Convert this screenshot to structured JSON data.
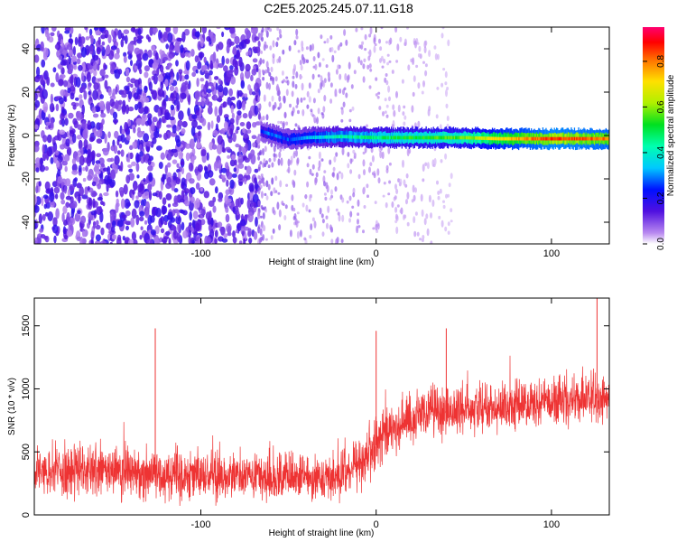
{
  "chart_data": [
    {
      "type": "heatmap",
      "title": "C2E5.2025.245.07.11.G18",
      "xlabel": "Height of straight line (km)",
      "ylabel": "Frequency (Hz)",
      "xlim": [
        -195,
        133
      ],
      "ylim": [
        -50,
        50
      ],
      "xticks": [
        -100,
        0,
        100
      ],
      "yticks": [
        -40,
        -20,
        0,
        20,
        40
      ],
      "colorbar": {
        "label": "Normalized spectral amplitude",
        "range": [
          0,
          0.95
        ],
        "ticks": [
          0.0,
          0.2,
          0.4,
          0.6,
          0.8
        ]
      },
      "ridge": {
        "description_points": [
          {
            "x": -66,
            "y": 2.0,
            "amp": 0.25
          },
          {
            "x": -60,
            "y": 0.5,
            "amp": 0.3
          },
          {
            "x": -50,
            "y": -2.0,
            "amp": 0.3
          },
          {
            "x": -40,
            "y": -1.0,
            "amp": 0.35
          },
          {
            "x": -20,
            "y": -0.5,
            "amp": 0.45
          },
          {
            "x": 0,
            "y": -1.0,
            "amp": 0.5
          },
          {
            "x": 20,
            "y": -1.0,
            "amp": 0.55
          },
          {
            "x": 50,
            "y": -1.0,
            "amp": 0.6
          },
          {
            "x": 70,
            "y": -1.5,
            "amp": 0.75
          },
          {
            "x": 100,
            "y": -1.5,
            "amp": 0.9
          },
          {
            "x": 133,
            "y": -1.5,
            "amp": 0.85
          }
        ]
      },
      "noise_region": {
        "x_from": -195,
        "x_to": -67,
        "amp_range": [
          0.05,
          0.2
        ]
      }
    },
    {
      "type": "line",
      "xlabel": "Height of straight line (km)",
      "ylabel": "SNR (10 * v/v)",
      "xlim": [
        -195,
        133
      ],
      "ylim": [
        0,
        1720
      ],
      "xticks": [
        -100,
        0,
        100
      ],
      "yticks": [
        0,
        500,
        1000,
        1500
      ],
      "color": "#ee3333",
      "envelope": [
        {
          "x": -195,
          "mean": 350,
          "spread": 260
        },
        {
          "x": -150,
          "mean": 340,
          "spread": 280
        },
        {
          "x": -100,
          "mean": 320,
          "spread": 260
        },
        {
          "x": -60,
          "mean": 290,
          "spread": 230
        },
        {
          "x": -20,
          "mean": 300,
          "spread": 230
        },
        {
          "x": -5,
          "mean": 480,
          "spread": 300
        },
        {
          "x": 10,
          "mean": 700,
          "spread": 280
        },
        {
          "x": 30,
          "mean": 800,
          "spread": 260
        },
        {
          "x": 60,
          "mean": 840,
          "spread": 250
        },
        {
          "x": 100,
          "mean": 900,
          "spread": 250
        },
        {
          "x": 133,
          "mean": 930,
          "spread": 260
        }
      ],
      "spikes": [
        {
          "x": -126,
          "y": 1480
        },
        {
          "x": 0,
          "y": 1460
        },
        {
          "x": 40,
          "y": 1480
        },
        {
          "x": 126,
          "y": 1720
        }
      ]
    }
  ]
}
